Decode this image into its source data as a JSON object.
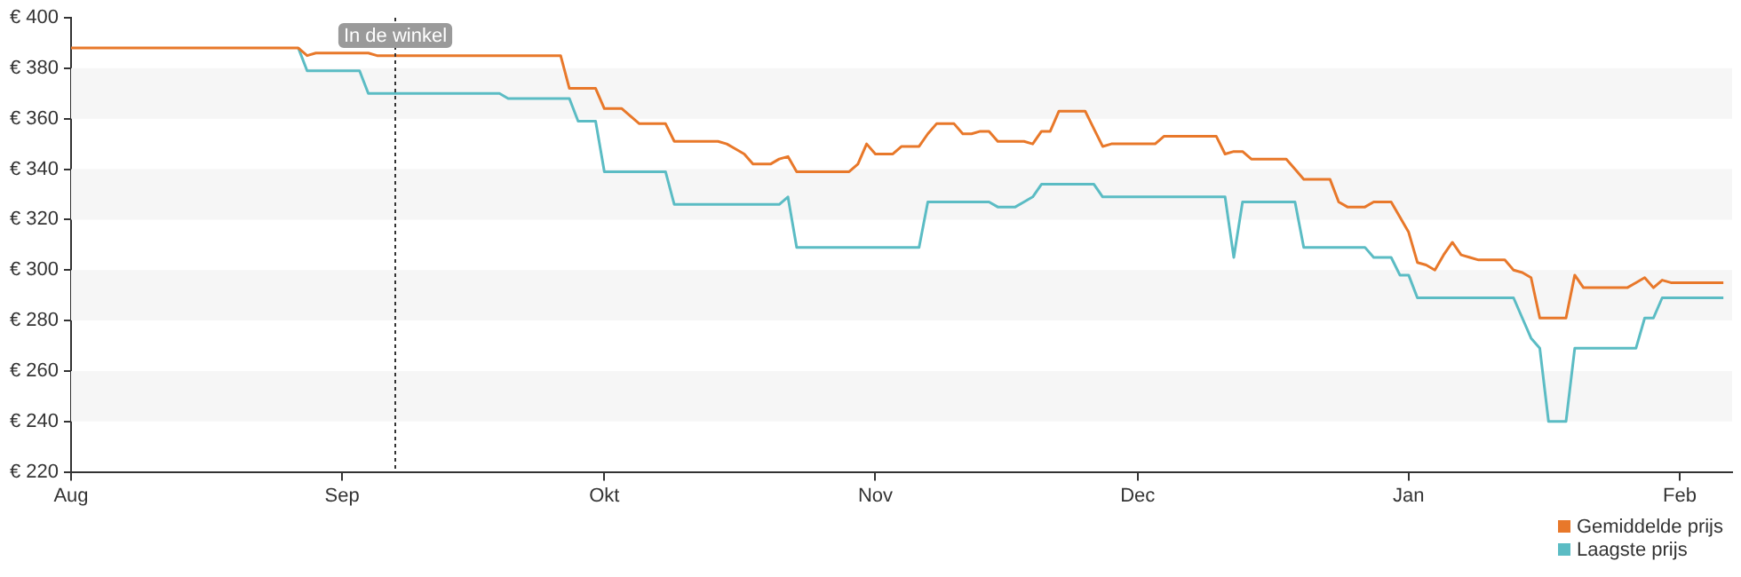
{
  "chart_data": {
    "type": "line",
    "categories": [
      "Aug",
      null,
      null,
      null,
      null,
      null,
      null,
      null,
      null,
      null,
      null,
      null,
      null,
      null,
      null,
      null,
      null,
      null,
      null,
      null,
      null,
      null,
      null,
      null,
      null,
      null,
      null,
      null,
      null,
      null,
      null,
      "Sep",
      null,
      null,
      null,
      null,
      null,
      null,
      null,
      null,
      null,
      null,
      null,
      null,
      null,
      null,
      null,
      null,
      null,
      null,
      null,
      null,
      null,
      null,
      null,
      null,
      null,
      null,
      null,
      null,
      null,
      "Okt",
      null,
      null,
      null,
      null,
      null,
      null,
      null,
      null,
      null,
      null,
      null,
      null,
      null,
      null,
      null,
      null,
      null,
      null,
      null,
      null,
      null,
      null,
      null,
      null,
      null,
      null,
      null,
      null,
      null,
      null,
      "Nov",
      null,
      null,
      null,
      null,
      null,
      null,
      null,
      null,
      null,
      null,
      null,
      null,
      null,
      null,
      null,
      null,
      null,
      null,
      null,
      null,
      null,
      null,
      null,
      null,
      null,
      null,
      null,
      null,
      null,
      "Dec",
      null,
      null,
      null,
      null,
      null,
      null,
      null,
      null,
      null,
      null,
      null,
      null,
      null,
      null,
      null,
      null,
      null,
      null,
      null,
      null,
      null,
      null,
      null,
      null,
      null,
      null,
      null,
      null,
      null,
      null,
      "Jan",
      null,
      null,
      null,
      null,
      null,
      null,
      null,
      null,
      null,
      null,
      null,
      null,
      null,
      null,
      null,
      null,
      null,
      null,
      null,
      null,
      null,
      null,
      null,
      null,
      null,
      null,
      null,
      null,
      null,
      null,
      "Feb",
      null,
      null,
      null,
      null,
      null,
      null
    ],
    "ylim": [
      220,
      400
    ],
    "yticks": [
      {
        "value": 220,
        "label": "€ 220"
      },
      {
        "value": 240,
        "label": "€ 240"
      },
      {
        "value": 260,
        "label": "€ 260"
      },
      {
        "value": 280,
        "label": "€ 280"
      },
      {
        "value": 300,
        "label": "€ 300"
      },
      {
        "value": 320,
        "label": "€ 320"
      },
      {
        "value": 340,
        "label": "€ 340"
      },
      {
        "value": 360,
        "label": "€ 360"
      },
      {
        "value": 380,
        "label": "€ 380"
      },
      {
        "value": 400,
        "label": "€ 400"
      }
    ],
    "annotations": [
      "In de winkel"
    ],
    "legend": "bottom right",
    "marker": "none",
    "line_style": "solid",
    "series": [
      {
        "name": "Gemiddelde prijs",
        "color": "#e8782a",
        "values": [
          388,
          388,
          388,
          388,
          388,
          388,
          388,
          388,
          388,
          388,
          388,
          388,
          388,
          388,
          388,
          388,
          388,
          388,
          388,
          388,
          388,
          388,
          388,
          388,
          388,
          388,
          388,
          385,
          386,
          386,
          386,
          386,
          386,
          386,
          386,
          385,
          385,
          385,
          385,
          385,
          385,
          385,
          385,
          385,
          385,
          385,
          385,
          385,
          385,
          385,
          385,
          385,
          385,
          385,
          385,
          385,
          385,
          372,
          372,
          372,
          372,
          364,
          364,
          364,
          361,
          358,
          358,
          358,
          358,
          351,
          351,
          351,
          351,
          351,
          351,
          350,
          348,
          346,
          342,
          342,
          342,
          344,
          345,
          339,
          339,
          339,
          339,
          339,
          339,
          339,
          342,
          350,
          346,
          346,
          346,
          349,
          349,
          349,
          354,
          358,
          358,
          358,
          354,
          354,
          355,
          355,
          351,
          351,
          351,
          351,
          350,
          355,
          355,
          363,
          363,
          363,
          363,
          356,
          349,
          350,
          350,
          350,
          350,
          350,
          350,
          353,
          353,
          353,
          353,
          353,
          353,
          353,
          346,
          347,
          347,
          344,
          344,
          344,
          344,
          344,
          340,
          336,
          336,
          336,
          336,
          327,
          325,
          325,
          325,
          327,
          327,
          327,
          321,
          315,
          303,
          302,
          300,
          306,
          311,
          306,
          305,
          304,
          304,
          304,
          304,
          300,
          299,
          297,
          281,
          281,
          281,
          281,
          298,
          293,
          293,
          293,
          293,
          293,
          293,
          295,
          297,
          293,
          296,
          295,
          295,
          295,
          295,
          295,
          295,
          295,
          null
        ]
      },
      {
        "name": "Laagste prijs",
        "color": "#5bbcc4",
        "values": [
          null,
          null,
          null,
          null,
          null,
          null,
          null,
          null,
          null,
          null,
          null,
          null,
          null,
          null,
          null,
          null,
          null,
          null,
          null,
          null,
          null,
          null,
          null,
          null,
          null,
          null,
          388,
          379,
          379,
          379,
          379,
          379,
          379,
          379,
          370,
          370,
          370,
          370,
          370,
          370,
          370,
          370,
          370,
          370,
          370,
          370,
          370,
          370,
          370,
          370,
          368,
          368,
          368,
          368,
          368,
          368,
          368,
          368,
          359,
          359,
          359,
          339,
          339,
          339,
          339,
          339,
          339,
          339,
          339,
          326,
          326,
          326,
          326,
          326,
          326,
          326,
          326,
          326,
          326,
          326,
          326,
          326,
          329,
          309,
          309,
          309,
          309,
          309,
          309,
          309,
          309,
          309,
          309,
          309,
          309,
          309,
          309,
          309,
          327,
          327,
          327,
          327,
          327,
          327,
          327,
          327,
          325,
          325,
          325,
          327,
          329,
          334,
          334,
          334,
          334,
          334,
          334,
          334,
          329,
          329,
          329,
          329,
          329,
          329,
          329,
          329,
          329,
          329,
          329,
          329,
          329,
          329,
          329,
          305,
          327,
          327,
          327,
          327,
          327,
          327,
          327,
          309,
          309,
          309,
          309,
          309,
          309,
          309,
          309,
          305,
          305,
          305,
          298,
          298,
          289,
          289,
          289,
          289,
          289,
          289,
          289,
          289,
          289,
          289,
          289,
          289,
          281,
          273,
          269,
          240,
          240,
          240,
          269,
          269,
          269,
          269,
          269,
          269,
          269,
          269,
          281,
          281,
          289,
          289,
          289,
          289,
          289,
          289,
          289,
          289,
          null
        ]
      }
    ]
  }
}
